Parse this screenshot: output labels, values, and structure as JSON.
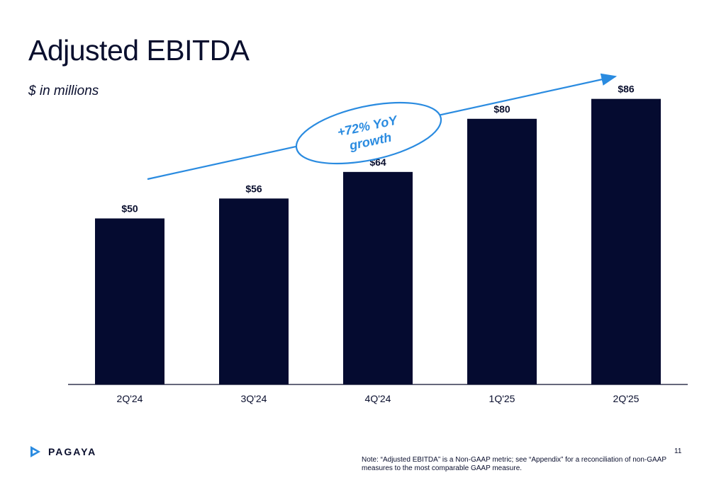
{
  "title": "Adjusted EBITDA",
  "subtitle": "$ in millions",
  "brand": "PAGAYA",
  "page_number": "11",
  "note": "Note: “Adjusted EBITDA” is a Non-GAAP metric; see “Appendix” for a reconciliation of non-GAAP measures to the most comparable GAAP measure.",
  "colors": {
    "bar": "#050b30",
    "accent": "#2a8be0",
    "axis": "#0a0f2e"
  },
  "chart_data": {
    "type": "bar",
    "categories": [
      "2Q'24",
      "3Q'24",
      "4Q'24",
      "1Q'25",
      "2Q'25"
    ],
    "values": [
      50,
      56,
      64,
      80,
      86
    ],
    "value_labels": [
      "$50",
      "$56",
      "$64",
      "$80",
      "$86"
    ],
    "title": "Adjusted EBITDA",
    "subtitle": "$ in millions",
    "annotation": {
      "line1": "+72% YoY",
      "line2": "growth"
    },
    "ylim": [
      0,
      100
    ],
    "grid": false,
    "legend": "none"
  }
}
